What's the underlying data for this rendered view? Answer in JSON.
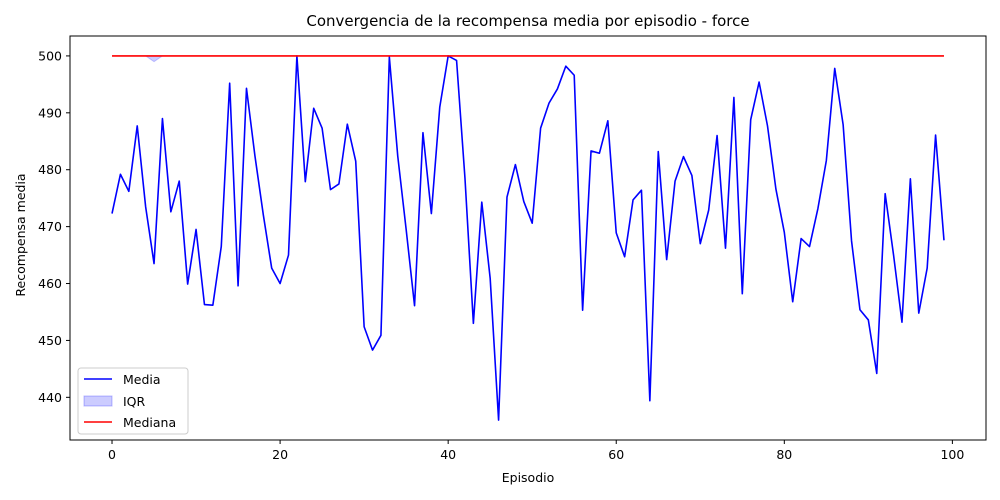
{
  "chart_data": {
    "type": "line",
    "title": "Convergencia de la recompensa media por episodio - force",
    "xlabel": "Episodio",
    "ylabel": "Recompensa media",
    "xlim": [
      -5,
      104
    ],
    "ylim": [
      432.5,
      503.5
    ],
    "xticks": [
      0,
      20,
      40,
      60,
      80,
      100
    ],
    "yticks": [
      440,
      450,
      460,
      470,
      480,
      490,
      500
    ],
    "grid": false,
    "legend": {
      "placement": "lower-left"
    },
    "series": [
      {
        "name": "Media",
        "color": "#0000ff",
        "x": [
          0,
          1,
          2,
          3,
          4,
          5,
          6,
          7,
          8,
          9,
          10,
          11,
          12,
          13,
          14,
          15,
          16,
          17,
          18,
          19,
          20,
          21,
          22,
          23,
          24,
          25,
          26,
          27,
          28,
          29,
          30,
          31,
          32,
          33,
          34,
          35,
          36,
          37,
          38,
          39,
          40,
          41,
          42,
          43,
          44,
          45,
          46,
          47,
          48,
          49,
          50,
          51,
          52,
          53,
          54,
          55,
          56,
          57,
          58,
          59,
          60,
          61,
          62,
          63,
          64,
          65,
          66,
          67,
          68,
          69,
          70,
          71,
          72,
          73,
          74,
          75,
          76,
          77,
          78,
          79,
          80,
          81,
          82,
          83,
          84,
          85,
          86,
          87,
          88,
          89,
          90,
          91,
          92,
          93,
          94,
          95,
          96,
          97,
          98,
          99
        ],
        "values": [
          472.3,
          479.2,
          476.2,
          487.7,
          473.5,
          463.5,
          489.0,
          472.6,
          478.0,
          459.9,
          469.5,
          456.3,
          456.2,
          466.5,
          495.2,
          459.6,
          494.3,
          482.5,
          472.1,
          462.7,
          460.0,
          465.0,
          500.0,
          477.9,
          490.8,
          487.3,
          476.5,
          477.5,
          488.0,
          481.5,
          452.4,
          448.3,
          450.9,
          499.8,
          482.4,
          469.5,
          456.1,
          486.5,
          472.3,
          491.0,
          500.0,
          499.2,
          478.5,
          453.0,
          474.3,
          460.9,
          436.0,
          475.2,
          480.9,
          474.4,
          470.6,
          487.3,
          491.7,
          494.2,
          498.2,
          496.6,
          455.3,
          483.3,
          482.9,
          488.6,
          468.9,
          464.7,
          474.7,
          476.4,
          439.4,
          483.2,
          464.2,
          478.0,
          482.3,
          479.0,
          467.0,
          472.9,
          486.0,
          466.2,
          492.7,
          458.2,
          488.8,
          495.4,
          487.7,
          476.6,
          469.0,
          456.8,
          467.9,
          466.5,
          473.2,
          481.6,
          497.8,
          487.9,
          467.5,
          455.4,
          453.6,
          444.2,
          475.8,
          465.0,
          453.2,
          478.4,
          454.8,
          462.7,
          486.1,
          467.6
        ]
      },
      {
        "name": "IQR",
        "color": "#0000ff",
        "opacity": 0.2,
        "x": [
          0,
          1,
          2,
          3,
          4,
          5,
          6,
          7,
          8,
          9,
          10,
          11,
          12,
          13,
          14,
          15,
          16,
          17,
          18,
          19,
          20,
          21,
          22,
          23,
          24,
          25,
          26,
          27,
          28,
          29,
          30,
          31,
          32,
          33,
          34,
          35,
          36,
          37,
          38,
          39,
          40,
          41,
          42,
          43,
          44,
          45,
          46,
          47,
          48,
          49,
          50,
          51,
          52,
          53,
          54,
          55,
          56,
          57,
          58,
          59,
          60,
          61,
          62,
          63,
          64,
          65,
          66,
          67,
          68,
          69,
          70,
          71,
          72,
          73,
          74,
          75,
          76,
          77,
          78,
          79,
          80,
          81,
          82,
          83,
          84,
          85,
          86,
          87,
          88,
          89,
          90,
          91,
          92,
          93,
          94,
          95,
          96,
          97,
          98,
          99
        ],
        "low": [
          500,
          500,
          500,
          500,
          500,
          499.0,
          500,
          500,
          500,
          500,
          500,
          500,
          500,
          500,
          500,
          500,
          500,
          500,
          500,
          500,
          500,
          500,
          500,
          500,
          500,
          500,
          500,
          500,
          500,
          500,
          500,
          500,
          500,
          500,
          500,
          500,
          500,
          500,
          500,
          500,
          500,
          500,
          500,
          500,
          500,
          500,
          500,
          500,
          500,
          500,
          500,
          500,
          500,
          500,
          500,
          500,
          500,
          500,
          500,
          500,
          500,
          500,
          500,
          500,
          500,
          500,
          500,
          500,
          500,
          500,
          500,
          500,
          500,
          500,
          500,
          500,
          500,
          500,
          500,
          500,
          500,
          500,
          500,
          500,
          500,
          500,
          500,
          500,
          500,
          500,
          500,
          500,
          500,
          500,
          500,
          500,
          500,
          500,
          500,
          500
        ],
        "high": [
          500,
          500,
          500,
          500,
          500,
          500,
          500,
          500,
          500,
          500,
          500,
          500,
          500,
          500,
          500,
          500,
          500,
          500,
          500,
          500,
          500,
          500,
          500,
          500,
          500,
          500,
          500,
          500,
          500,
          500,
          500,
          500,
          500,
          500,
          500,
          500,
          500,
          500,
          500,
          500,
          500,
          500,
          500,
          500,
          500,
          500,
          500,
          500,
          500,
          500,
          500,
          500,
          500,
          500,
          500,
          500,
          500,
          500,
          500,
          500,
          500,
          500,
          500,
          500,
          500,
          500,
          500,
          500,
          500,
          500,
          500,
          500,
          500,
          500,
          500,
          500,
          500,
          500,
          500,
          500,
          500,
          500,
          500,
          500,
          500,
          500,
          500,
          500,
          500,
          500,
          500,
          500,
          500,
          500,
          500,
          500,
          500,
          500,
          500,
          500
        ]
      },
      {
        "name": "Mediana",
        "color": "#ff0000",
        "x": [
          0,
          99
        ],
        "values": [
          500,
          500
        ]
      }
    ]
  }
}
